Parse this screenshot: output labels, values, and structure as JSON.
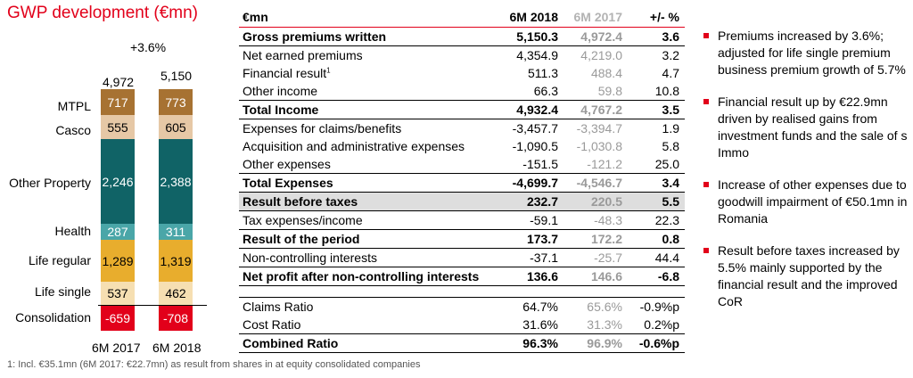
{
  "chart": {
    "title": "GWP development (€mn)",
    "growth_label": "+3.6%",
    "years": [
      "6M 2017",
      "6M 2018"
    ],
    "totals": [
      "4,972",
      "5,150"
    ],
    "segments": [
      {
        "name": "MTPL",
        "values": [
          "717",
          "773"
        ],
        "color": "#a77232",
        "text_color": "#ffffff"
      },
      {
        "name": "Casco",
        "values": [
          "555",
          "605"
        ],
        "color": "#e6c8a6",
        "text_color": "#000000"
      },
      {
        "name": "Other Property",
        "values": [
          "2,246",
          "2,388"
        ],
        "color": "#106366",
        "text_color": "#ffffff"
      },
      {
        "name": "Health",
        "values": [
          "287",
          "311"
        ],
        "color": "#4aa6a8",
        "text_color": "#ffffff"
      },
      {
        "name": "Life regular",
        "values": [
          "1,289",
          "1,319"
        ],
        "color": "#e8ad2d",
        "text_color": "#000000"
      },
      {
        "name": "Life single",
        "values": [
          "537",
          "462"
        ],
        "color": "#f6dfb2",
        "text_color": "#000000"
      },
      {
        "name": "Consolidation",
        "values": [
          "-659",
          "-708"
        ],
        "color": "#e2001a",
        "text_color": "#ffffff"
      }
    ]
  },
  "table": {
    "header": [
      "€mn",
      "6M 2018",
      "6M 2017",
      "+/- %"
    ],
    "rows": [
      [
        "Gross premiums written",
        "5,150.3",
        "4,972.4",
        "3.6"
      ],
      [
        "Net earned premiums",
        "4,354.9",
        "4,219.0",
        "3.2"
      ],
      [
        "Financial result",
        "511.3",
        "488.4",
        "4.7"
      ],
      [
        "Other income",
        "66.3",
        "59.8",
        "10.8"
      ],
      [
        "Total Income",
        "4,932.4",
        "4,767.2",
        "3.5"
      ],
      [
        "Expenses for claims/benefits",
        "-3,457.7",
        "-3,394.7",
        "1.9"
      ],
      [
        "Acquisition and administrative expenses",
        "-1,090.5",
        "-1,030.8",
        "5.8"
      ],
      [
        "Other expenses",
        "-151.5",
        "-121.2",
        "25.0"
      ],
      [
        "Total Expenses",
        "-4,699.7",
        "-4,546.7",
        "3.4"
      ],
      [
        "Result before taxes",
        "232.7",
        "220.5",
        "5.5"
      ],
      [
        "Tax expenses/income",
        "-59.1",
        "-48.3",
        "22.3"
      ],
      [
        "Result of the period",
        "173.7",
        "172.2",
        "0.8"
      ],
      [
        "Non-controlling interests",
        "-37.1",
        "-25.7",
        "44.4"
      ],
      [
        "Net profit after non-controlling interests",
        "136.6",
        "146.6",
        "-6.8"
      ],
      [
        "Claims Ratio",
        "64.7%",
        "65.6%",
        "-0.9%p"
      ],
      [
        "Cost Ratio",
        "31.6%",
        "31.3%",
        "0.2%p"
      ],
      [
        "Combined Ratio",
        "96.3%",
        "96.9%",
        "-0.6%p"
      ]
    ],
    "footnote_marker": "1"
  },
  "bullets": [
    "Premiums increased by 3.6%; adjusted for life single premium business premium growth of 5.7%",
    "Financial result up by €22.9mn driven by realised gains from investment funds and the sale of s Immo",
    "Increase of other expenses due to goodwill impairment of €50.1mn in Romania",
    "Result before taxes increased by 5.5% mainly supported by the financial result and the improved CoR"
  ],
  "footnote": "1: Incl. €35.1mn (6M 2017: €22.7mn) as result from shares in at equity consolidated companies"
}
